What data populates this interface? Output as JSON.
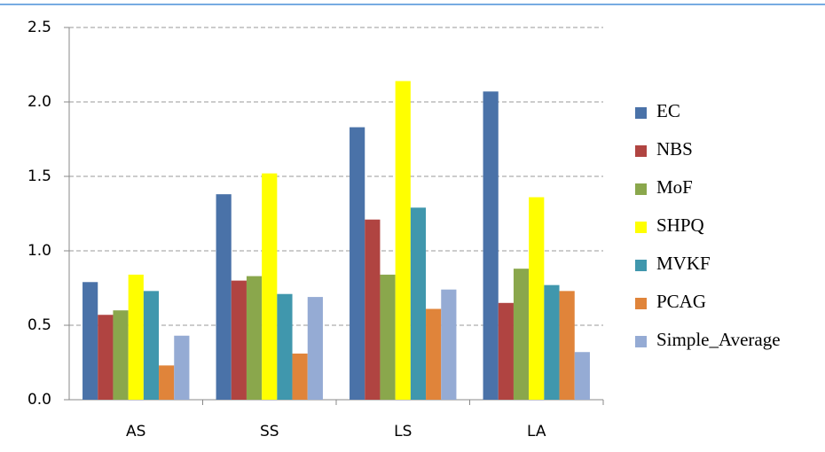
{
  "chart_data": {
    "type": "bar",
    "categories": [
      "AS",
      "SS",
      "LS",
      "LA"
    ],
    "series": [
      {
        "name": "EC",
        "color": "#4a72a8",
        "values": [
          0.79,
          1.38,
          1.83,
          2.07
        ]
      },
      {
        "name": "NBS",
        "color": "#b04441",
        "values": [
          0.57,
          0.8,
          1.21,
          0.65
        ]
      },
      {
        "name": "MoF",
        "color": "#8aa74c",
        "values": [
          0.6,
          0.83,
          0.84,
          0.88
        ]
      },
      {
        "name": "SHPQ",
        "color": "#ffff00",
        "values": [
          0.84,
          1.52,
          2.14,
          1.36
        ]
      },
      {
        "name": "MVKF",
        "color": "#4097ad",
        "values": [
          0.73,
          0.71,
          1.29,
          0.77
        ]
      },
      {
        "name": "PCAG",
        "color": "#e0843a",
        "values": [
          0.23,
          0.31,
          0.61,
          0.73
        ]
      },
      {
        "name": "Simple_Average",
        "color": "#95abd4",
        "values": [
          0.43,
          0.69,
          0.74,
          0.32
        ]
      }
    ],
    "ylim": [
      0,
      2.5
    ],
    "yticks": [
      {
        "value": 0,
        "label": "0.0"
      },
      {
        "value": 0.5,
        "label": "0.5"
      },
      {
        "value": 1,
        "label": "1.0"
      },
      {
        "value": 1.5,
        "label": "1.5"
      },
      {
        "value": 2,
        "label": "2.0"
      },
      {
        "value": 2.5,
        "label": "2.5"
      }
    ],
    "grid": true,
    "legend": "right"
  }
}
